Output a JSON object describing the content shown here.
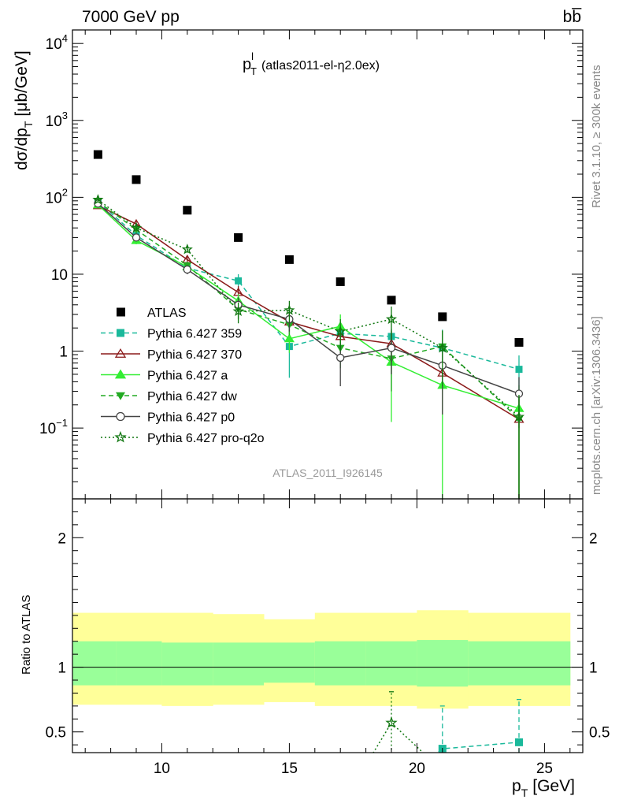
{
  "header": {
    "energy_label": "7000 GeV pp",
    "process_label": "bb̅"
  },
  "plot_title": {
    "main": "p",
    "sup": "l",
    "sub": "T",
    "detail": "(atlas2011-el-η2.0ex)"
  },
  "side_labels": {
    "rivet": "Rivet 3.1.10, ≥ 300k events",
    "mcplots": "mcplots.cern.ch [arXiv:1306.3436]"
  },
  "analysis_id": "ATLAS_2011_I926145",
  "axes": {
    "ylabel_main": "dσ/dp",
    "ylabel_sub": "T",
    "ylabel_unit": "[μb/GeV]",
    "ylabel_ratio": "Ratio to ATLAS",
    "xlabel_main": "p",
    "xlabel_sub": "T",
    "xlabel_unit": "[GeV]"
  },
  "chart_data": {
    "type": "scatter",
    "x_range": [
      6.5,
      26.5
    ],
    "xticks": [
      {
        "value": 10,
        "label": "10"
      },
      {
        "value": 15,
        "label": "15"
      },
      {
        "value": 20,
        "label": "20"
      },
      {
        "value": 25,
        "label": "25"
      }
    ],
    "main": {
      "yscale": "log",
      "ylim": [
        0.012,
        15000
      ],
      "yticks": [
        {
          "value": 10000,
          "base": "10",
          "exp": "4"
        },
        {
          "value": 1000,
          "base": "10",
          "exp": "3"
        },
        {
          "value": 100,
          "base": "10",
          "exp": "2"
        },
        {
          "value": 10,
          "base": "10",
          "exp": ""
        },
        {
          "value": 1,
          "base": "1",
          "exp": ""
        },
        {
          "value": 0.1,
          "base": "10",
          "exp": "−1"
        }
      ],
      "data": {
        "name": "ATLAS",
        "x": [
          7.5,
          9,
          11,
          13,
          15,
          17,
          19,
          21,
          24
        ],
        "y": [
          360,
          170,
          68,
          30,
          15.5,
          8,
          4.6,
          2.8,
          1.3
        ]
      },
      "series": [
        {
          "name": "Pythia 6.427 359",
          "color": "#1ab99b",
          "dash": "6,4",
          "marker": "square",
          "x": [
            7.5,
            9,
            11,
            13,
            15,
            17,
            19,
            21,
            24
          ],
          "y": [
            88,
            32,
            12,
            8.2,
            1.15,
            1.7,
            1.55,
            1.1,
            0.58
          ],
          "err": [
            8,
            3,
            1.5,
            1.8,
            0.7,
            0.7,
            0.4,
            0.8,
            0.3
          ]
        },
        {
          "name": "Pythia 6.427 370",
          "color": "#8b1a1a",
          "dash": "",
          "marker": "triangle-open",
          "x": [
            7.5,
            9,
            11,
            13,
            15,
            17,
            19,
            21,
            24
          ],
          "y": [
            78,
            45,
            15.5,
            5.8,
            2.4,
            1.55,
            1.25,
            0.52,
            0.13
          ],
          "err": [
            6,
            4,
            1.8,
            1.2,
            0.8,
            0.6,
            0.6,
            0.37,
            0.12
          ]
        },
        {
          "name": "Pythia 6.427 a",
          "color": "#33ee33",
          "dash": "",
          "marker": "triangle",
          "x": [
            7.5,
            9,
            11,
            13,
            15,
            17,
            19,
            21,
            24
          ],
          "y": [
            80,
            27.5,
            12.5,
            4.5,
            1.45,
            2.1,
            0.72,
            0.36,
            0.18
          ],
          "err": [
            6,
            3,
            1.5,
            1,
            0.5,
            0.9,
            0.6,
            0.36,
            0.18
          ]
        },
        {
          "name": "Pythia 6.427 dw",
          "color": "#22aa22",
          "dash": "6,4",
          "marker": "triangle-down",
          "x": [
            7.5,
            9,
            11,
            13,
            15,
            17,
            19,
            21,
            24
          ],
          "y": [
            88,
            38,
            13,
            3.5,
            2.2,
            1.1,
            0.8,
            1.15,
            0.13
          ],
          "err": [
            7,
            3,
            1.5,
            0.9,
            0.6,
            0.5,
            0.5,
            0.7,
            0.12
          ]
        },
        {
          "name": "Pythia 6.427 p0",
          "color": "#444444",
          "dash": "",
          "marker": "circle-open",
          "x": [
            7.5,
            9,
            11,
            13,
            15,
            17,
            19,
            21,
            24
          ],
          "y": [
            83,
            30,
            11.5,
            4,
            2.6,
            0.82,
            1.1,
            0.65,
            0.28
          ],
          "err": [
            6,
            3,
            1.5,
            1,
            0.8,
            0.47,
            0.6,
            0.5,
            0.18
          ]
        },
        {
          "name": "Pythia 6.427 pro-q2o",
          "color": "#117711",
          "dash": "2,3",
          "marker": "star-open",
          "x": [
            7.5,
            9,
            11,
            13,
            15,
            17,
            19,
            21,
            24
          ],
          "y": [
            93,
            40,
            21,
            3.3,
            3.4,
            1.8,
            2.6,
            1.1,
            0.14
          ],
          "err": [
            7,
            3,
            2,
            1,
            1.1,
            0.8,
            1.2,
            0.75,
            0.13
          ]
        }
      ]
    },
    "ratio": {
      "yscale": "linear",
      "ylim": [
        0.34,
        2.3
      ],
      "yticks": [
        {
          "value": 0.5,
          "label": "0.5"
        },
        {
          "value": 1,
          "label": "1"
        },
        {
          "value": 2,
          "label": "2"
        }
      ],
      "bands": {
        "x_edges": [
          6.5,
          8.2,
          10,
          12,
          14,
          16,
          18,
          20,
          22,
          26
        ],
        "outer_color": "#ffff99",
        "inner_color": "#99ff99",
        "outer": [
          [
            0.71,
            1.42
          ],
          [
            0.71,
            1.42
          ],
          [
            0.7,
            1.42
          ],
          [
            0.71,
            1.41
          ],
          [
            0.73,
            1.37
          ],
          [
            0.7,
            1.42
          ],
          [
            0.7,
            1.42
          ],
          [
            0.68,
            1.44
          ],
          [
            0.7,
            1.42
          ]
        ],
        "inner": [
          [
            0.86,
            1.2
          ],
          [
            0.86,
            1.2
          ],
          [
            0.86,
            1.19
          ],
          [
            0.86,
            1.19
          ],
          [
            0.88,
            1.19
          ],
          [
            0.86,
            1.2
          ],
          [
            0.86,
            1.2
          ],
          [
            0.85,
            1.21
          ],
          [
            0.86,
            1.2
          ]
        ]
      },
      "series": [
        {
          "name": "Pythia 6.427 359",
          "color": "#1ab99b",
          "dash": "6,4",
          "marker": "square",
          "x": [
            21,
            24
          ],
          "y": [
            0.37,
            0.42
          ],
          "err": [
            0.33,
            0.33
          ],
          "enter_from_x": 20.6
        },
        {
          "name": "Pythia 6.427 pro-q2o",
          "color": "#117711",
          "dash": "2,3",
          "marker": "star-open",
          "x": [
            19
          ],
          "y": [
            0.57
          ],
          "err": [
            0.24
          ],
          "enter_from_x": 18.2,
          "exit_to_x": 20.4
        }
      ]
    }
  }
}
